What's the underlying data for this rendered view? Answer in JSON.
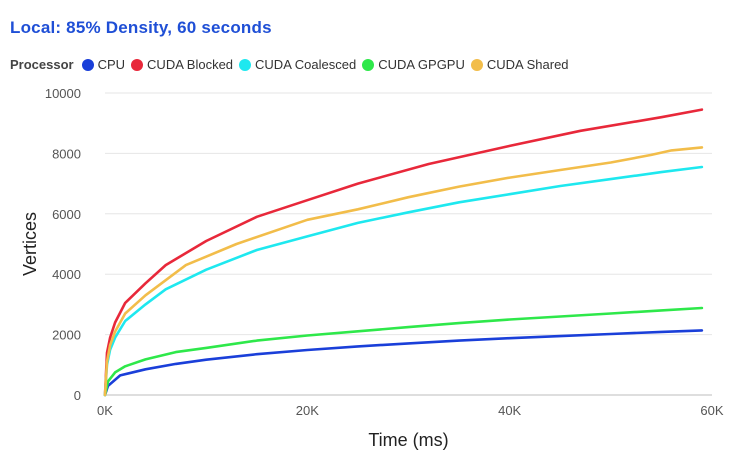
{
  "chart_data": {
    "type": "line",
    "title": "Local: 85% Density, 60 seconds",
    "xlabel": "Time (ms)",
    "ylabel": "Vertices",
    "legend_title": "Processor",
    "legend_position": "top-left",
    "xlim": [
      0,
      60000
    ],
    "ylim": [
      0,
      10000
    ],
    "x_ticks": [
      0,
      20000,
      40000,
      60000
    ],
    "x_tick_labels": [
      "0K",
      "20K",
      "40K",
      "60K"
    ],
    "y_ticks": [
      0,
      2000,
      4000,
      6000,
      8000,
      10000
    ],
    "y_tick_labels": [
      "0",
      "2000",
      "4000",
      "6000",
      "8000",
      "10000"
    ],
    "grid": "horizontal",
    "series": [
      {
        "name": "CPU",
        "color": "#1a3fd9",
        "x": [
          0,
          300,
          1500,
          4000,
          7000,
          10000,
          15000,
          20000,
          25000,
          30000,
          35000,
          40000,
          45000,
          50000,
          55000,
          59000
        ],
        "y": [
          0,
          300,
          650,
          850,
          1030,
          1170,
          1350,
          1490,
          1610,
          1710,
          1800,
          1880,
          1950,
          2020,
          2090,
          2140
        ]
      },
      {
        "name": "CUDA Blocked",
        "color": "#e8283a",
        "x": [
          0,
          200,
          500,
          1000,
          2000,
          4000,
          6000,
          10000,
          15000,
          20000,
          25000,
          32000,
          40000,
          47000,
          55000,
          59000
        ],
        "y": [
          0,
          1400,
          1900,
          2400,
          3050,
          3700,
          4300,
          5100,
          5900,
          6450,
          7000,
          7650,
          8250,
          8750,
          9200,
          9450
        ]
      },
      {
        "name": "CUDA Coalesced",
        "color": "#1ee8ef",
        "x": [
          0,
          200,
          500,
          1000,
          2000,
          4000,
          6000,
          10000,
          15000,
          20000,
          25000,
          30000,
          35000,
          40000,
          45000,
          50000,
          55000,
          59000
        ],
        "y": [
          0,
          1000,
          1500,
          1900,
          2450,
          3000,
          3500,
          4150,
          4800,
          5250,
          5700,
          6050,
          6380,
          6650,
          6920,
          7150,
          7380,
          7550
        ]
      },
      {
        "name": "CUDA GPGPU",
        "color": "#2ee84a",
        "x": [
          0,
          300,
          1000,
          2000,
          4000,
          7000,
          10000,
          15000,
          20000,
          25000,
          30000,
          35000,
          40000,
          45000,
          50000,
          55000,
          59000
        ],
        "y": [
          0,
          450,
          750,
          950,
          1180,
          1420,
          1560,
          1800,
          1970,
          2110,
          2250,
          2380,
          2500,
          2600,
          2700,
          2800,
          2880
        ]
      },
      {
        "name": "CUDA Shared",
        "color": "#f2bd4a",
        "x": [
          0,
          200,
          500,
          1000,
          2000,
          4000,
          8000,
          13000,
          20000,
          25000,
          30000,
          35000,
          40000,
          45000,
          50000,
          54000,
          56000,
          59000
        ],
        "y": [
          0,
          1100,
          1650,
          2100,
          2700,
          3300,
          4300,
          5000,
          5800,
          6150,
          6550,
          6900,
          7200,
          7450,
          7700,
          7950,
          8100,
          8200
        ]
      }
    ]
  }
}
